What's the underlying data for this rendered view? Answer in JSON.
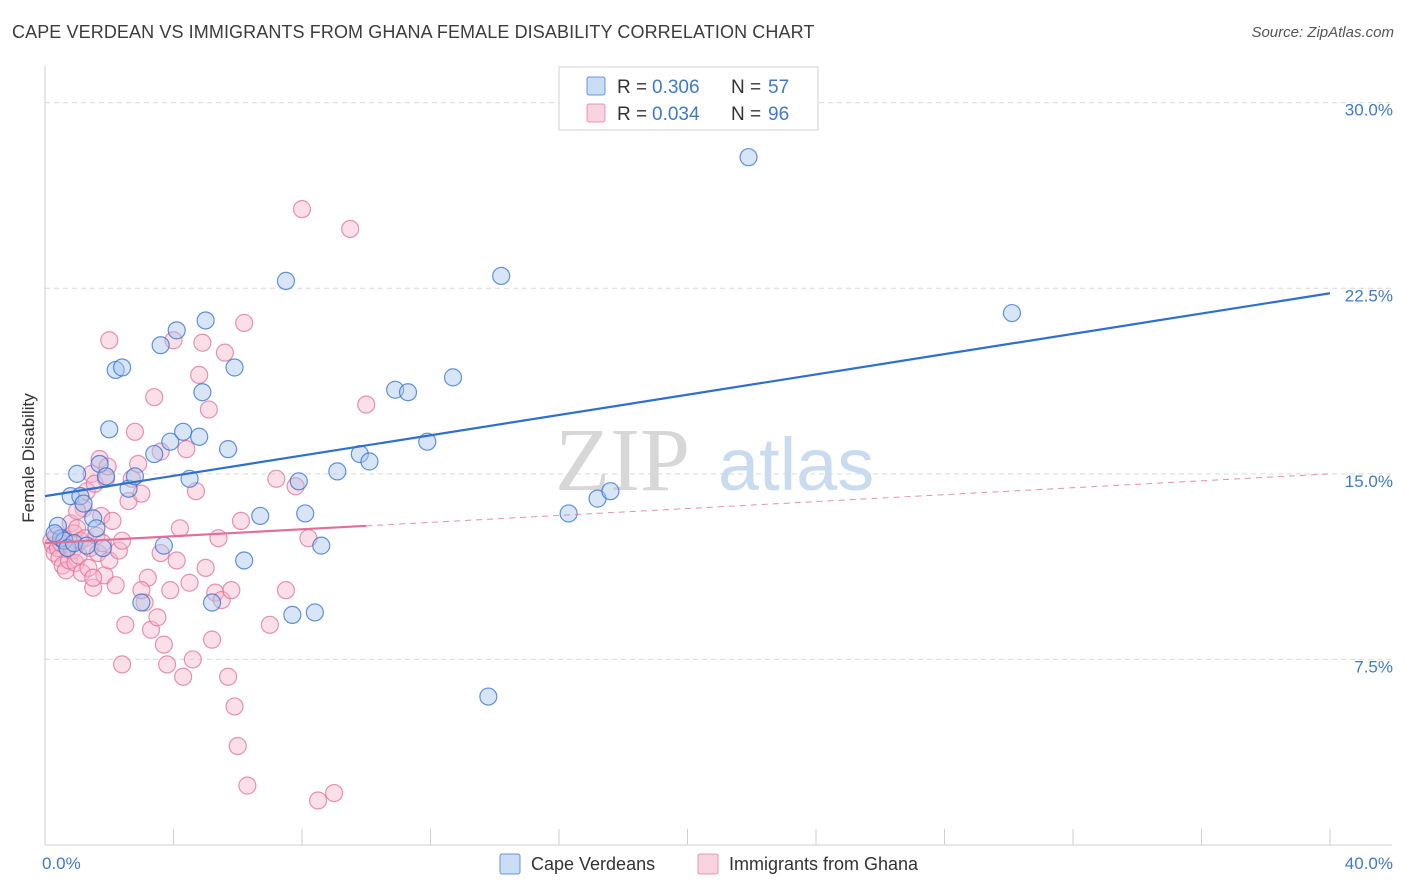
{
  "header": {
    "title": "CAPE VERDEAN VS IMMIGRANTS FROM GHANA FEMALE DISABILITY CORRELATION CHART",
    "source": "Source: ZipAtlas.com"
  },
  "watermark": {
    "zip": "ZIP",
    "atlas": "atlas"
  },
  "colors": {
    "blue": "#2f6fcf",
    "blue_fill": "#a9c6ee",
    "pink": "#e0709a",
    "pink_fill": "#f4b6cb",
    "tick_text": "#3f7ac9",
    "grid": "#d9d9d9"
  },
  "chart_data": {
    "type": "scatter",
    "title": "CAPE VERDEAN VS IMMIGRANTS FROM GHANA FEMALE DISABILITY CORRELATION CHART",
    "xlabel": "",
    "ylabel": "Female Disability",
    "xlim": [
      0,
      40
    ],
    "ylim": [
      0,
      31
    ],
    "x_tick_labels": [
      {
        "value": 0,
        "label": "0.0%"
      },
      {
        "value": 40,
        "label": "40.0%"
      }
    ],
    "y_ticks": [
      {
        "value": 7.5,
        "label": "7.5%"
      },
      {
        "value": 15.0,
        "label": "15.0%"
      },
      {
        "value": 22.5,
        "label": "22.5%"
      },
      {
        "value": 30.0,
        "label": "30.0%"
      }
    ],
    "legend_top": [
      {
        "series": "Cape Verdeans",
        "r_label": "R =",
        "r_value": "0.306",
        "n_label": "N =",
        "n_value": "57"
      },
      {
        "series": "Immigrants from Ghana",
        "r_label": "R =",
        "r_value": "0.034",
        "n_label": "N =",
        "n_value": "96"
      }
    ],
    "series": [
      {
        "name": "Cape Verdeans",
        "trend": {
          "x0": 0,
          "y0": 14.1,
          "x1": 40,
          "y1": 22.3,
          "dashed_from": null
        },
        "points": [
          [
            0.4,
            12.9
          ],
          [
            0.5,
            12.4
          ],
          [
            0.6,
            12.3
          ],
          [
            0.7,
            12.0
          ],
          [
            0.8,
            14.1
          ],
          [
            0.9,
            12.2
          ],
          [
            1.0,
            15.0
          ],
          [
            1.1,
            14.1
          ],
          [
            1.2,
            13.8
          ],
          [
            1.3,
            12.1
          ],
          [
            1.5,
            13.2
          ],
          [
            1.6,
            12.8
          ],
          [
            1.7,
            15.4
          ],
          [
            1.8,
            12.0
          ],
          [
            1.9,
            14.9
          ],
          [
            2.0,
            16.8
          ],
          [
            2.2,
            19.2
          ],
          [
            2.4,
            19.3
          ],
          [
            2.6,
            14.4
          ],
          [
            2.8,
            14.9
          ],
          [
            3.0,
            9.8
          ],
          [
            3.4,
            15.8
          ],
          [
            3.6,
            20.2
          ],
          [
            3.7,
            12.1
          ],
          [
            3.9,
            16.3
          ],
          [
            4.1,
            20.8
          ],
          [
            4.3,
            16.7
          ],
          [
            4.5,
            14.8
          ],
          [
            4.8,
            16.5
          ],
          [
            4.9,
            18.3
          ],
          [
            5.0,
            21.2
          ],
          [
            5.2,
            9.8
          ],
          [
            5.7,
            16.0
          ],
          [
            5.9,
            19.3
          ],
          [
            6.2,
            11.5
          ],
          [
            6.7,
            13.3
          ],
          [
            7.5,
            22.8
          ],
          [
            7.7,
            9.3
          ],
          [
            7.9,
            14.7
          ],
          [
            8.1,
            13.4
          ],
          [
            8.4,
            9.4
          ],
          [
            8.6,
            12.1
          ],
          [
            9.1,
            15.1
          ],
          [
            9.8,
            15.8
          ],
          [
            10.1,
            15.5
          ],
          [
            10.9,
            18.4
          ],
          [
            11.3,
            18.3
          ],
          [
            11.9,
            16.3
          ],
          [
            12.7,
            18.9
          ],
          [
            13.8,
            6.0
          ],
          [
            14.2,
            23.0
          ],
          [
            16.3,
            13.4
          ],
          [
            17.2,
            14.0
          ],
          [
            17.6,
            14.3
          ],
          [
            0.3,
            12.6
          ],
          [
            21.9,
            27.8
          ],
          [
            30.1,
            21.5
          ]
        ]
      },
      {
        "name": "Immigrants from Ghana",
        "trend": {
          "x0": 0,
          "y0": 12.2,
          "x1": 40,
          "y1": 15.0,
          "dashed_from": 10
        },
        "points": [
          [
            0.2,
            12.3
          ],
          [
            0.25,
            12.1
          ],
          [
            0.3,
            11.8
          ],
          [
            0.35,
            12.5
          ],
          [
            0.4,
            12.0
          ],
          [
            0.45,
            11.6
          ],
          [
            0.5,
            12.2
          ],
          [
            0.55,
            11.3
          ],
          [
            0.6,
            12.4
          ],
          [
            0.65,
            11.1
          ],
          [
            0.7,
            12.0
          ],
          [
            0.75,
            11.5
          ],
          [
            0.8,
            13.0
          ],
          [
            0.85,
            11.9
          ],
          [
            0.9,
            12.6
          ],
          [
            0.95,
            11.4
          ],
          [
            1.0,
            12.8
          ],
          [
            1.05,
            11.7
          ],
          [
            1.1,
            12.3
          ],
          [
            1.15,
            11.0
          ],
          [
            1.2,
            13.6
          ],
          [
            1.25,
            12.4
          ],
          [
            1.3,
            14.3
          ],
          [
            1.35,
            11.2
          ],
          [
            1.4,
            12.0
          ],
          [
            1.45,
            15.0
          ],
          [
            1.5,
            10.4
          ],
          [
            1.55,
            14.6
          ],
          [
            1.6,
            12.5
          ],
          [
            1.65,
            11.8
          ],
          [
            1.7,
            15.6
          ],
          [
            1.75,
            13.3
          ],
          [
            1.8,
            12.2
          ],
          [
            1.85,
            10.9
          ],
          [
            1.9,
            14.8
          ],
          [
            1.95,
            15.3
          ],
          [
            2.0,
            11.5
          ],
          [
            2.1,
            13.1
          ],
          [
            2.2,
            10.5
          ],
          [
            2.3,
            11.9
          ],
          [
            2.4,
            12.3
          ],
          [
            2.5,
            8.9
          ],
          [
            2.6,
            13.9
          ],
          [
            2.7,
            14.8
          ],
          [
            2.8,
            16.7
          ],
          [
            2.9,
            15.4
          ],
          [
            3.0,
            14.2
          ],
          [
            3.1,
            9.8
          ],
          [
            3.2,
            10.8
          ],
          [
            3.3,
            8.7
          ],
          [
            3.4,
            18.1
          ],
          [
            3.5,
            9.2
          ],
          [
            3.6,
            11.8
          ],
          [
            3.7,
            8.1
          ],
          [
            3.8,
            7.3
          ],
          [
            3.9,
            10.3
          ],
          [
            4.0,
            20.4
          ],
          [
            4.1,
            11.5
          ],
          [
            4.2,
            12.8
          ],
          [
            4.3,
            6.8
          ],
          [
            4.4,
            16.0
          ],
          [
            4.5,
            10.6
          ],
          [
            4.6,
            7.5
          ],
          [
            4.7,
            14.3
          ],
          [
            4.8,
            19.0
          ],
          [
            4.9,
            20.3
          ],
          [
            5.0,
            11.2
          ],
          [
            5.1,
            17.6
          ],
          [
            5.2,
            8.3
          ],
          [
            5.3,
            10.2
          ],
          [
            5.4,
            12.4
          ],
          [
            5.5,
            9.9
          ],
          [
            5.6,
            19.9
          ],
          [
            5.7,
            6.8
          ],
          [
            5.8,
            10.3
          ],
          [
            5.9,
            5.6
          ],
          [
            6.0,
            4.0
          ],
          [
            6.1,
            13.1
          ],
          [
            6.2,
            21.1
          ],
          [
            6.3,
            2.4
          ],
          [
            7.0,
            8.9
          ],
          [
            7.2,
            14.8
          ],
          [
            7.5,
            10.3
          ],
          [
            7.8,
            14.5
          ],
          [
            8.0,
            25.7
          ],
          [
            8.2,
            12.4
          ],
          [
            8.5,
            1.8
          ],
          [
            9.0,
            2.1
          ],
          [
            9.5,
            24.9
          ],
          [
            10.0,
            17.8
          ],
          [
            3.6,
            15.9
          ],
          [
            2.0,
            20.4
          ],
          [
            1.0,
            13.5
          ],
          [
            2.4,
            7.3
          ],
          [
            1.5,
            10.8
          ],
          [
            3.0,
            10.3
          ]
        ]
      }
    ],
    "legend_bottom": [
      "Cape Verdeans",
      "Immigrants from Ghana"
    ]
  }
}
